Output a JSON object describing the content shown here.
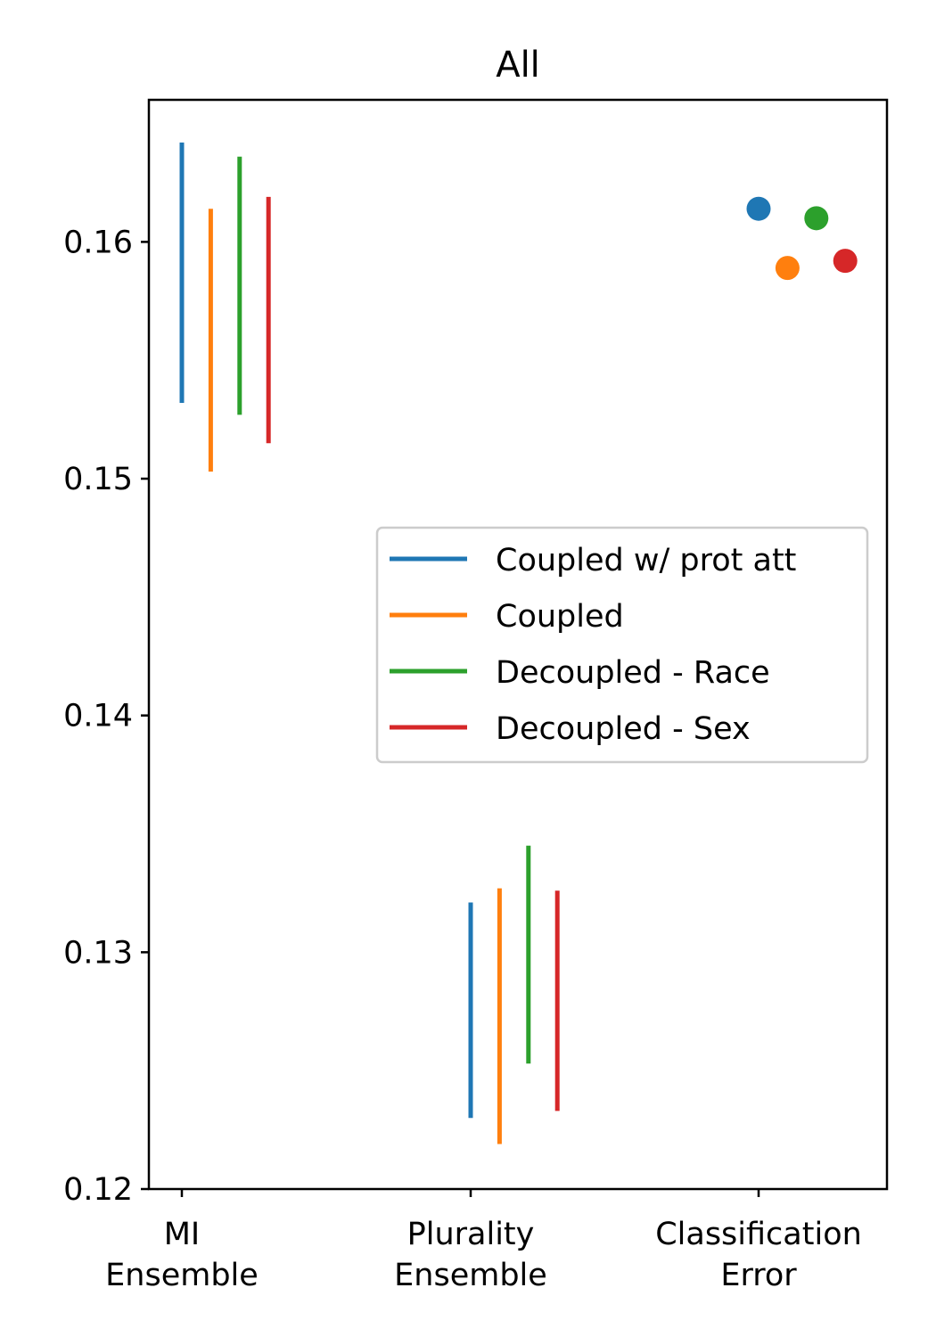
{
  "chart_data": {
    "type": "range",
    "title": "All",
    "xlabel": "",
    "ylabel": "",
    "ylim": [
      0.12,
      0.166
    ],
    "yticks": [
      0.12,
      0.13,
      0.14,
      0.15,
      0.16
    ],
    "ytick_labels": [
      "0.12",
      "0.13",
      "0.14",
      "0.15",
      "0.16"
    ],
    "categories": [
      {
        "lines": [
          "MI",
          "Ensemble"
        ]
      },
      {
        "lines": [
          "Plurality",
          "Ensemble"
        ]
      },
      {
        "lines": [
          "Classification",
          "Error"
        ]
      }
    ],
    "grid": false,
    "legend_position": "center-right",
    "series": [
      {
        "name": "Coupled w/ prot att",
        "color": "#1f77b4",
        "ranges": [
          [
            0.1532,
            0.1642
          ],
          [
            0.123,
            0.1321
          ],
          null
        ],
        "points": [
          null,
          null,
          0.1614
        ]
      },
      {
        "name": "Coupled",
        "color": "#ff7f0e",
        "ranges": [
          [
            0.1503,
            0.1614
          ],
          [
            0.1219,
            0.1327
          ],
          null
        ],
        "points": [
          null,
          null,
          0.1589
        ]
      },
      {
        "name": "Decoupled - Race",
        "color": "#2ca02c",
        "ranges": [
          [
            0.1527,
            0.1636
          ],
          [
            0.1253,
            0.1345
          ],
          null
        ],
        "points": [
          null,
          null,
          0.161
        ]
      },
      {
        "name": "Decoupled - Sex",
        "color": "#d62728",
        "ranges": [
          [
            0.1515,
            0.1619
          ],
          [
            0.1233,
            0.1326
          ],
          null
        ],
        "points": [
          null,
          null,
          0.1592
        ]
      }
    ]
  }
}
